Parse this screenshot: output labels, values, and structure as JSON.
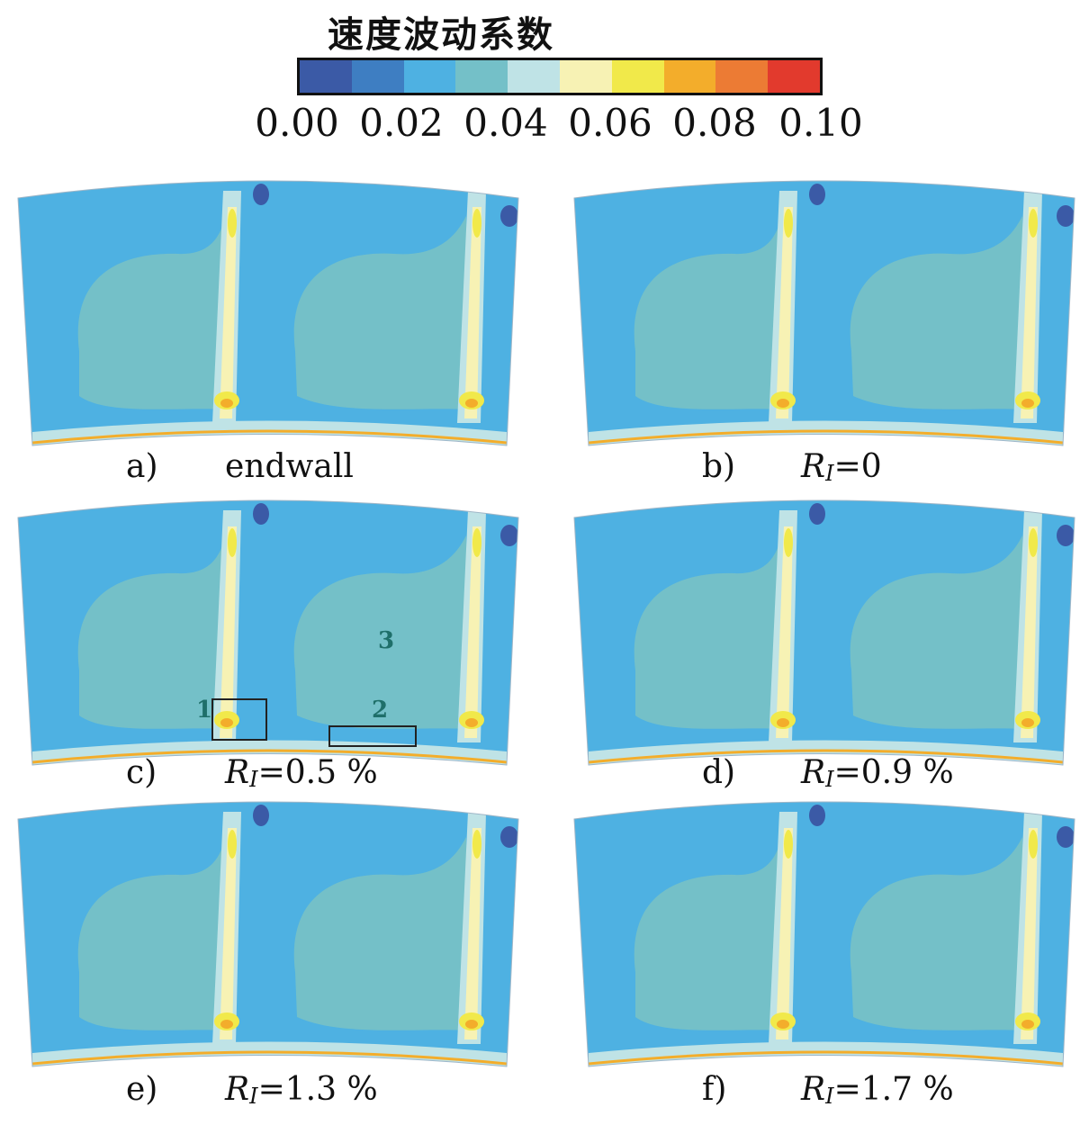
{
  "colorbar": {
    "title": "速度波动系数",
    "colors": [
      "#3b5aa6",
      "#3e7ec2",
      "#4eb1e2",
      "#74c0c8",
      "#bfe3e6",
      "#f7f2b4",
      "#f1e94a",
      "#f3ad2b",
      "#ec7b34",
      "#e23a2d"
    ],
    "ticks": [
      "0.00",
      "0.02",
      "0.04",
      "0.06",
      "0.08",
      "0.10"
    ]
  },
  "panels": [
    {
      "letter": "a)",
      "label": "endwall"
    },
    {
      "letter": "b)",
      "label": "=0",
      "ri": "R",
      "ri_sub": "I"
    },
    {
      "letter": "c)",
      "label": "=0.5 %",
      "ri": "R",
      "ri_sub": "I",
      "markers": [
        "1",
        "2",
        "3"
      ]
    },
    {
      "letter": "d)",
      "label": "=0.9 %",
      "ri": "R",
      "ri_sub": "I"
    },
    {
      "letter": "e)",
      "label": "=1.3 %",
      "ri": "R",
      "ri_sub": "I"
    },
    {
      "letter": "f)",
      "label": "=1.7 %",
      "ri": "R",
      "ri_sub": "I"
    }
  ]
}
